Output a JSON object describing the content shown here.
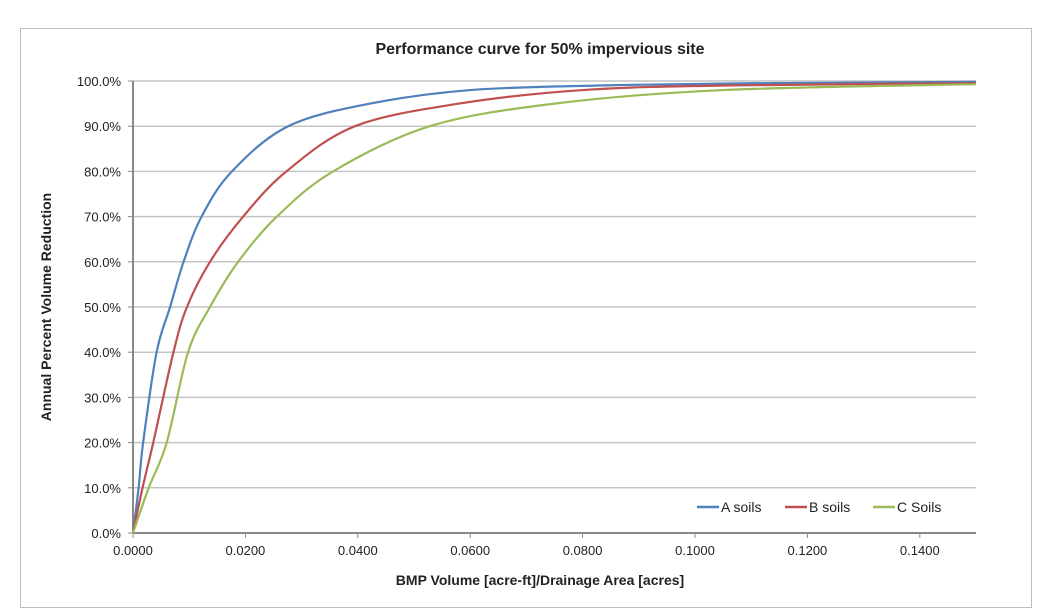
{
  "chart_data": {
    "type": "line",
    "title": "Performance curve for 50% impervious site",
    "xlabel": "BMP Volume [acre-ft]/Drainage Area [acres]",
    "ylabel": "Annual Percent Volume Reduction",
    "xlim": [
      0,
      0.15
    ],
    "ylim": [
      0,
      100
    ],
    "x_ticks": [
      "0.0000",
      "0.0200",
      "0.0400",
      "0.0600",
      "0.0800",
      "0.1000",
      "0.1200",
      "0.1400"
    ],
    "x_tick_values": [
      0,
      0.02,
      0.04,
      0.06,
      0.08,
      0.1,
      0.12,
      0.14
    ],
    "y_ticks": [
      "0.0%",
      "10.0%",
      "20.0%",
      "30.0%",
      "40.0%",
      "50.0%",
      "60.0%",
      "70.0%",
      "80.0%",
      "90.0%",
      "100.0%"
    ],
    "y_tick_values": [
      0,
      10,
      20,
      30,
      40,
      50,
      60,
      70,
      80,
      90,
      100
    ],
    "grid": "horizontal",
    "legend": "bottom-right",
    "series": [
      {
        "name": "A soils",
        "color": "#4f81bd",
        "x": [
          0,
          0.001,
          0.0018,
          0.0042,
          0.0066,
          0.009,
          0.0122,
          0.0176,
          0.0276,
          0.0422,
          0.06,
          0.083,
          0.11,
          0.15
        ],
        "y": [
          0,
          10,
          20,
          40,
          50,
          60,
          70,
          80,
          90,
          95,
          98,
          99,
          99.5,
          99.8
        ]
      },
      {
        "name": "B soils",
        "color": "#c0504d",
        "x": [
          0,
          0.0017,
          0.0036,
          0.0072,
          0.0096,
          0.0137,
          0.0196,
          0.0273,
          0.0395,
          0.058,
          0.08,
          0.105,
          0.15
        ],
        "y": [
          0,
          10,
          20,
          40,
          50,
          60,
          70,
          80,
          90,
          95,
          98,
          99,
          99.5
        ]
      },
      {
        "name": "C Soils",
        "color": "#9bbb59",
        "x": [
          0,
          0.0028,
          0.006,
          0.0098,
          0.0137,
          0.0187,
          0.0256,
          0.0356,
          0.0528,
          0.075,
          0.105,
          0.15
        ],
        "y": [
          0,
          10,
          20,
          40,
          50,
          60,
          70,
          80,
          90,
          95,
          98,
          99.3
        ]
      }
    ]
  }
}
